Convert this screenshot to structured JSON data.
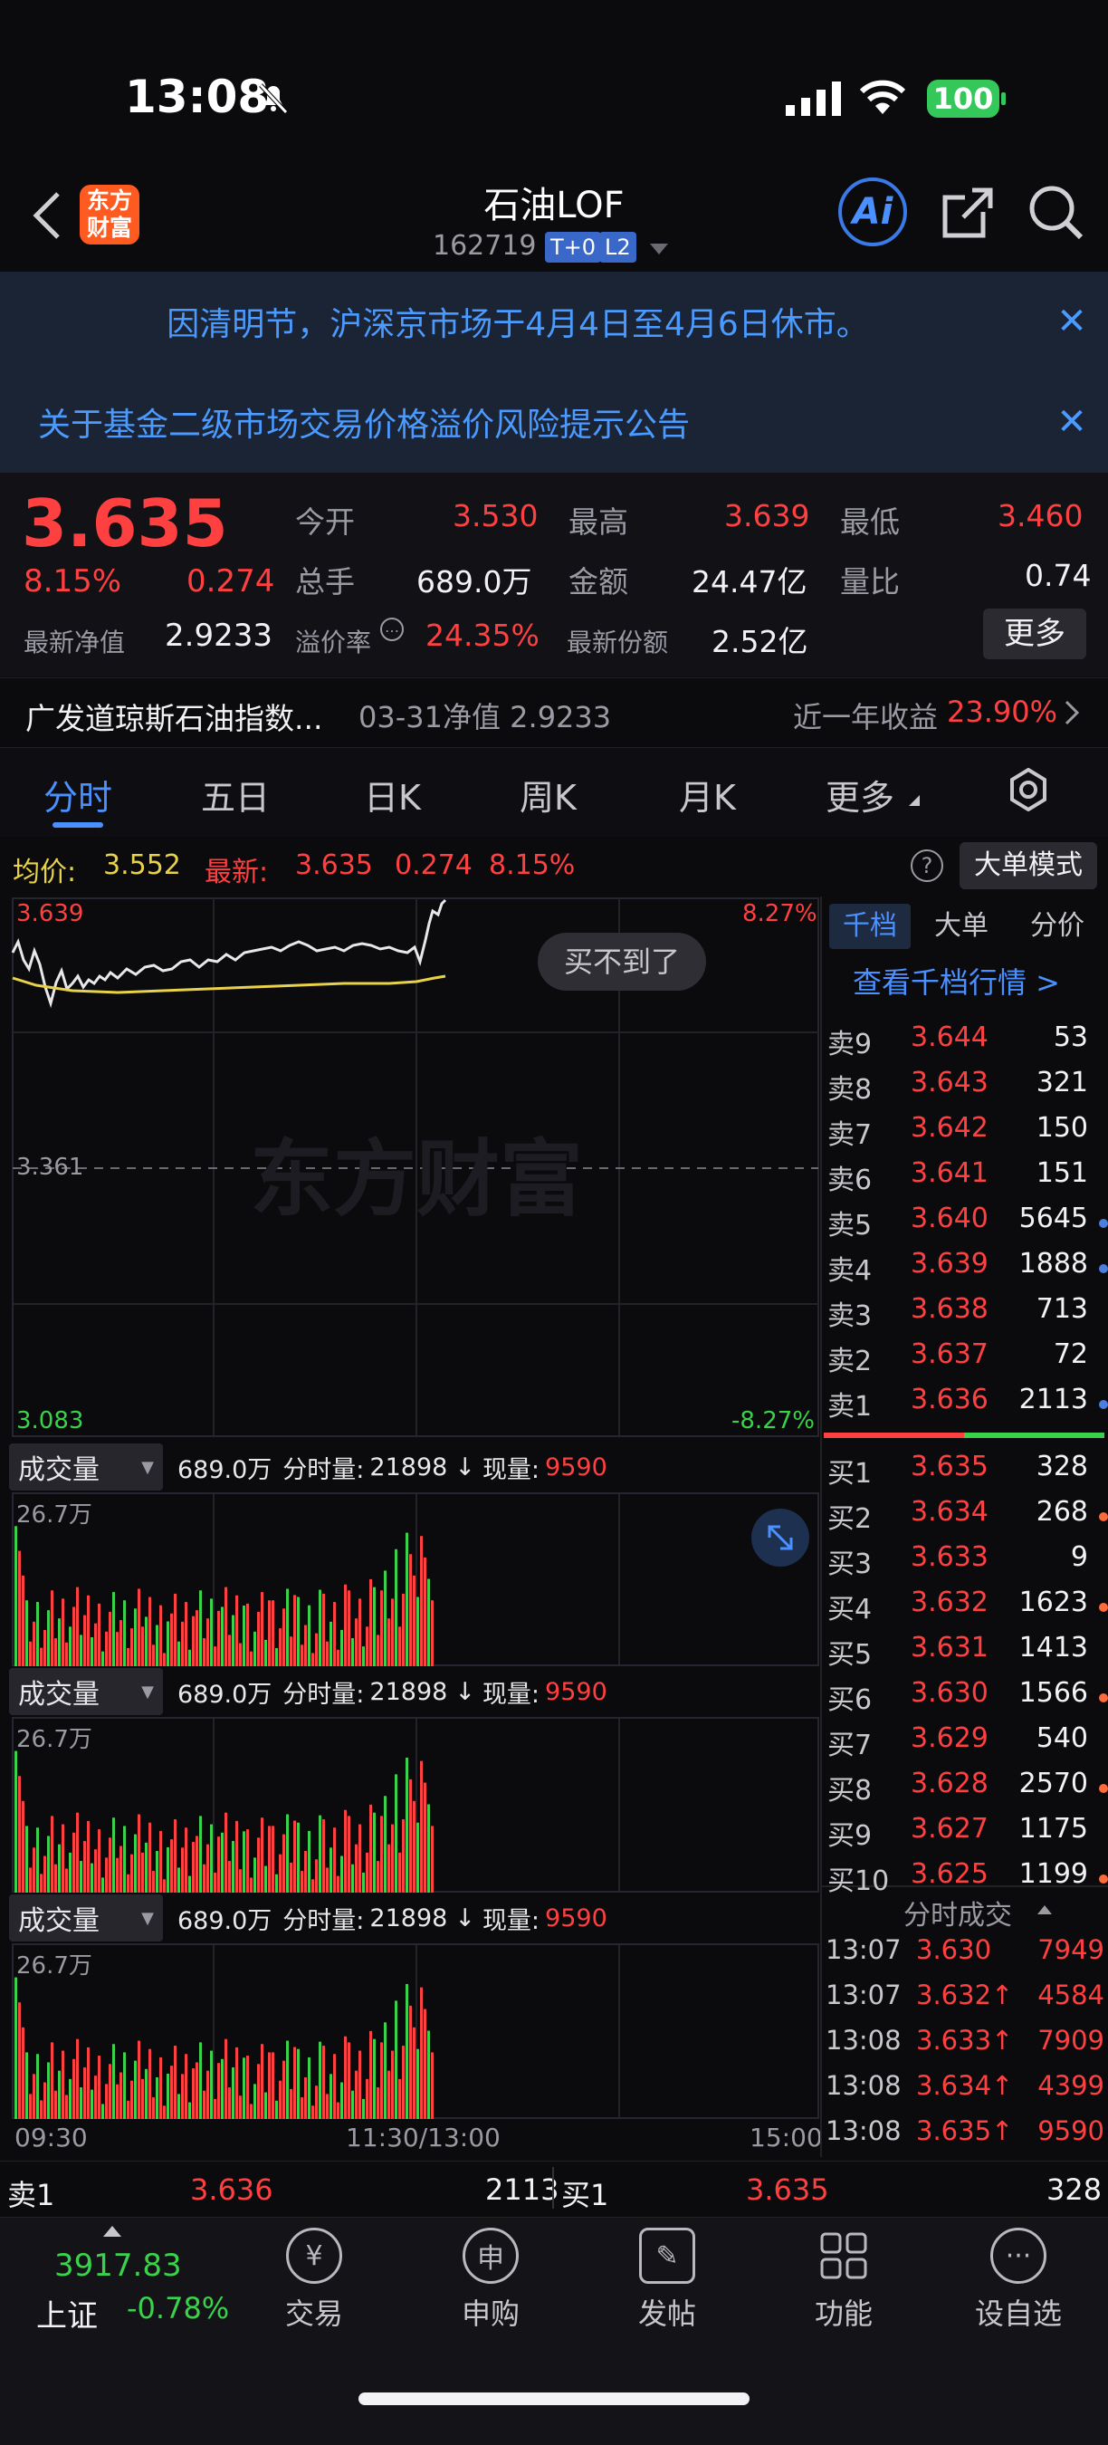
{
  "status": {
    "time": "13:08",
    "battery": "100"
  },
  "nav": {
    "logo": "东方\n财富",
    "title": "石油LOF",
    "code": "162719",
    "badge_t0": "T+0",
    "badge_l2": "L2",
    "ai_label": "Ai"
  },
  "notices": [
    {
      "text": "因清明节，沪深京市场于4月4日至4月6日休市。"
    },
    {
      "text": "关于基金二级市场交易价格溢价风险提示公告"
    }
  ],
  "quote": {
    "price": "3.635",
    "pct": "8.15%",
    "chg": "0.274",
    "nav_label": "最新净值",
    "nav_value": "2.9233",
    "open_label": "今开",
    "open": "3.530",
    "high_label": "最高",
    "high": "3.639",
    "low_label": "最低",
    "low": "3.460",
    "vol_label": "总手",
    "vol": "689.0万",
    "amt_label": "金额",
    "amt": "24.47亿",
    "ratio_label": "量比",
    "ratio": "0.74",
    "premium_label": "溢价率",
    "premium": "24.35%",
    "share_label": "最新份额",
    "share": "2.52亿",
    "more": "更多"
  },
  "index_row": {
    "name": "广发道琼斯石油指数...",
    "nav": "03-31净值 2.9233",
    "year_label": "近一年收益",
    "year_value": "23.90%"
  },
  "tabs": [
    "分时",
    "五日",
    "日K",
    "周K",
    "月K",
    "更多"
  ],
  "info_bar": {
    "avg_label": "均价:",
    "avg": "3.552",
    "latest_label": "最新:",
    "latest": "3.635",
    "chg": "0.274",
    "pct": "8.15%",
    "mode": "大单模式"
  },
  "chart": {
    "y_top": "3.639",
    "y_mid": "3.361",
    "y_bot": "3.083",
    "pct_top": "8.27%",
    "pct_bot": "-8.27%",
    "watermark": "东方财富",
    "toast": "买不到了",
    "x_start": "09:30",
    "x_mid": "11:30/13:00",
    "x_end": "15:00"
  },
  "vol_panels": [
    {
      "btn": "成交量",
      "total": "689.0万",
      "fs_label": "分时量:",
      "fs": "21898",
      "cur_label": "现量:",
      "cur": "9590",
      "max": "26.7万"
    },
    {
      "btn": "成交量",
      "total": "689.0万",
      "fs_label": "分时量:",
      "fs": "21898",
      "cur_label": "现量:",
      "cur": "9590",
      "max": "26.7万"
    },
    {
      "btn": "成交量",
      "total": "689.0万",
      "fs_label": "分时量:",
      "fs": "21898",
      "cur_label": "现量:",
      "cur": "9590",
      "max": "26.7万"
    }
  ],
  "order_tabs": [
    "千档",
    "大单",
    "分价"
  ],
  "order_link": "查看千档行情 >",
  "asks": [
    {
      "l": "卖9",
      "p": "3.644",
      "v": "53",
      "dot": ""
    },
    {
      "l": "卖8",
      "p": "3.643",
      "v": "321",
      "dot": ""
    },
    {
      "l": "卖7",
      "p": "3.642",
      "v": "150",
      "dot": ""
    },
    {
      "l": "卖6",
      "p": "3.641",
      "v": "151",
      "dot": ""
    },
    {
      "l": "卖5",
      "p": "3.640",
      "v": "5645",
      "dot": "#4a7fe0"
    },
    {
      "l": "卖4",
      "p": "3.639",
      "v": "1888",
      "dot": "#4a7fe0"
    },
    {
      "l": "卖3",
      "p": "3.638",
      "v": "713",
      "dot": ""
    },
    {
      "l": "卖2",
      "p": "3.637",
      "v": "72",
      "dot": ""
    },
    {
      "l": "卖1",
      "p": "3.636",
      "v": "2113",
      "dot": "#4a7fe0"
    }
  ],
  "bids": [
    {
      "l": "买1",
      "p": "3.635",
      "v": "328",
      "dot": ""
    },
    {
      "l": "买2",
      "p": "3.634",
      "v": "268",
      "dot": "#ff6a3a"
    },
    {
      "l": "买3",
      "p": "3.633",
      "v": "9",
      "dot": ""
    },
    {
      "l": "买4",
      "p": "3.632",
      "v": "1623",
      "dot": "#ff6a3a"
    },
    {
      "l": "买5",
      "p": "3.631",
      "v": "1413",
      "dot": ""
    },
    {
      "l": "买6",
      "p": "3.630",
      "v": "1566",
      "dot": "#ff6a3a"
    },
    {
      "l": "买7",
      "p": "3.629",
      "v": "540",
      "dot": ""
    },
    {
      "l": "买8",
      "p": "3.628",
      "v": "2570",
      "dot": "#ff6a3a"
    },
    {
      "l": "买9",
      "p": "3.627",
      "v": "1175",
      "dot": ""
    },
    {
      "l": "买10",
      "p": "3.625",
      "v": "1199",
      "dot": "#ff6a3a"
    }
  ],
  "ticks_title": "分时成交",
  "ticks": [
    {
      "t": "13:07",
      "p": "3.630",
      "v": "7949"
    },
    {
      "t": "13:07",
      "p": "3.632↑",
      "v": "4584"
    },
    {
      "t": "13:08",
      "p": "3.633↑",
      "v": "7909"
    },
    {
      "t": "13:08",
      "p": "3.634↑",
      "v": "4399"
    },
    {
      "t": "13:08",
      "p": "3.635↑",
      "v": "9590"
    }
  ],
  "bottom_quote": {
    "sell_label": "卖1",
    "sell_p": "3.636",
    "sell_v": "2113",
    "buy_label": "买1",
    "buy_p": "3.635",
    "buy_v": "328"
  },
  "bottom_nav": {
    "index_value": "3917.83",
    "index_name": "上证",
    "index_pct": "-0.78%",
    "items": [
      {
        "label": "交易",
        "icon": "yuan-icon"
      },
      {
        "label": "申购",
        "icon": "subscribe-icon"
      },
      {
        "label": "发帖",
        "icon": "edit-icon"
      },
      {
        "label": "功能",
        "icon": "grid-icon"
      },
      {
        "label": "设自选",
        "icon": "more-icon"
      }
    ]
  },
  "colors": {
    "up": "#ff4040",
    "down": "#3ad24a",
    "accent": "#4a90ff",
    "avg_line": "#e8d24a"
  }
}
